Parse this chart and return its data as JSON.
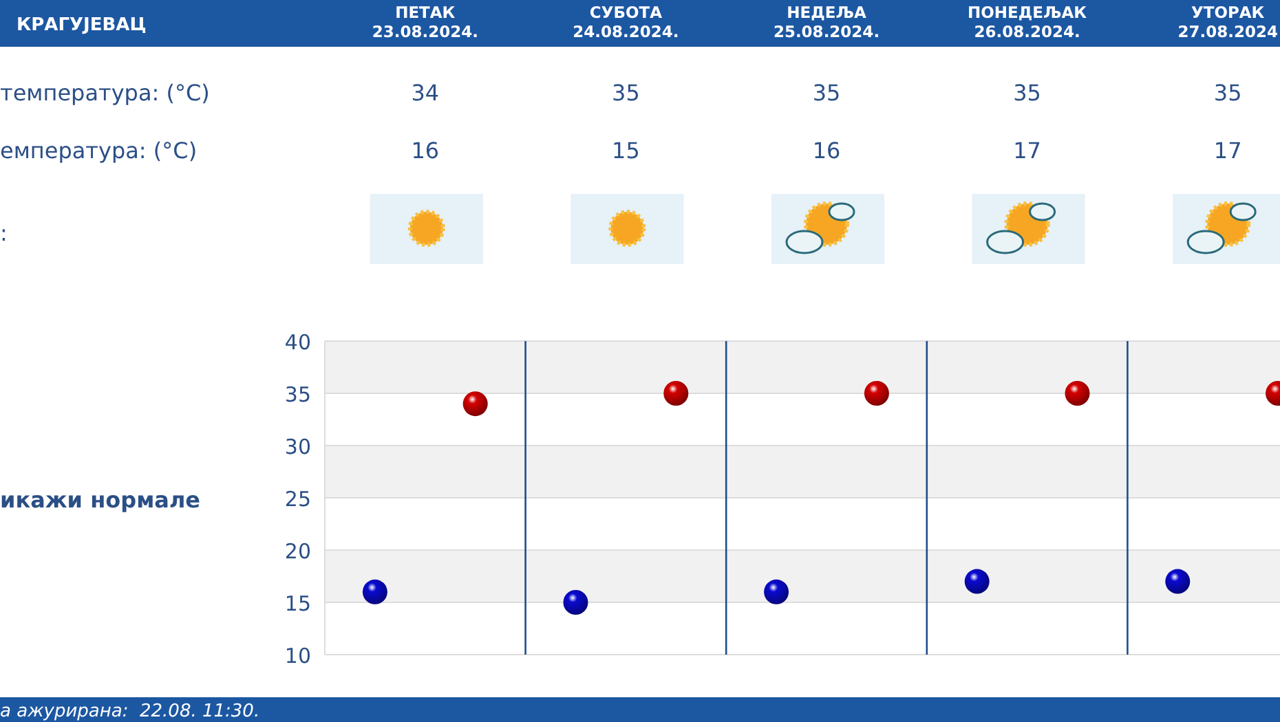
{
  "chart_data": {
    "type": "scatter",
    "title": "КРАГУЈЕВАЦ",
    "categories": [
      null,
      null,
      null,
      null,
      null
    ],
    "annotations": [
      "ПЕТАК 23.08.2024.",
      "СУБОТА 24.08.2024.",
      "НЕДЕЉА 25.08.2024.",
      "ПОНЕДЕЉАК 26.08.2024.",
      "УТОРАК 27.08.2024",
      "температура: (°C)",
      "емпература: (°C)",
      ":",
      "икажи нормале",
      "а ажурирана:  22.08. 11:30."
    ],
    "series": [
      {
        "color": "#0a0ad0",
        "values": [
          16,
          15,
          16,
          17,
          17
        ]
      },
      {
        "color": "#d40000",
        "values": [
          34,
          35,
          35,
          35,
          35
        ]
      }
    ],
    "ylim": [
      10,
      40
    ],
    "yticks": [
      10,
      15,
      20,
      25,
      30,
      35,
      40
    ],
    "grid": true,
    "marker": "circle",
    "data_labels": true
  }
}
